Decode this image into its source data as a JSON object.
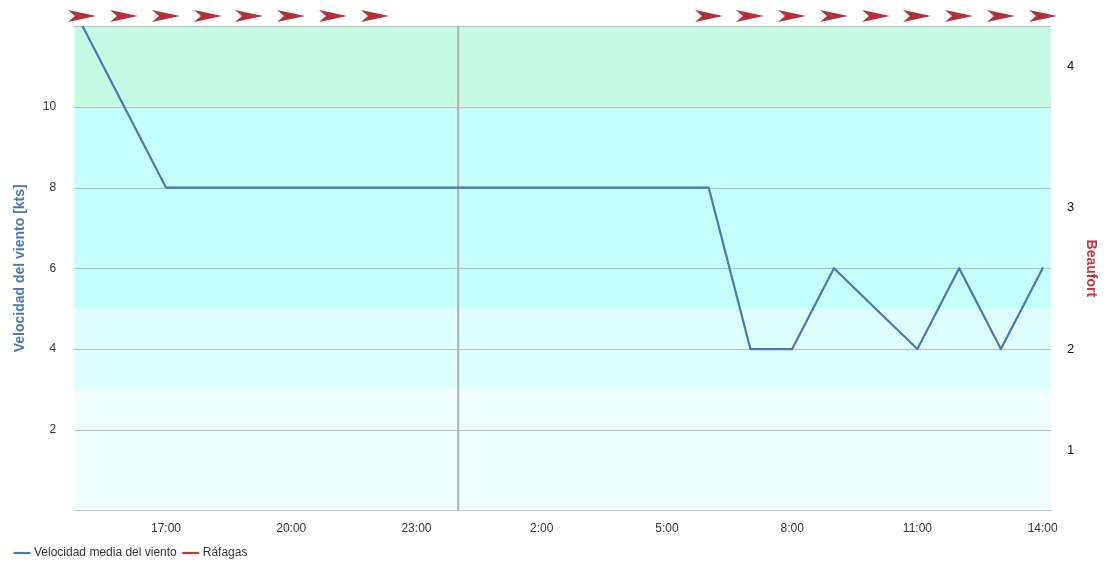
{
  "chart_data": {
    "type": "line",
    "ylabel": "Velocidad del viento [kts]",
    "y2label": "Beaufort",
    "x": [
      "--01-01T15:00",
      "--01-01T16:00",
      "--01-01T17:00",
      "--01-01T18:00",
      "--01-01T19:00",
      "--01-01T20:00",
      "--01-01T21:00",
      "--01-01T22:00",
      "--01-02T06:00",
      "--01-02T07:00",
      "--01-02T08:00",
      "--01-02T09:00",
      "--01-02T10:00",
      "--01-02T11:00",
      "--01-02T12:00",
      "--01-02T13:00",
      "--01-02T14:00"
    ],
    "series": [
      {
        "name": "Velocidad media del viento",
        "color": "#4a77b4",
        "values": [
          12,
          10,
          8,
          8,
          8,
          8,
          8,
          8,
          8,
          4,
          4,
          6,
          5,
          4,
          6,
          4,
          6
        ]
      },
      {
        "name": "Ráfagas",
        "color": "#c1363d",
        "values": [
          null,
          null,
          null,
          null,
          null,
          null,
          null,
          null,
          null,
          null,
          null,
          null,
          null,
          null,
          null,
          null,
          null
        ]
      }
    ],
    "xlim": [
      "--01-01T14:48",
      "--01-02T14:12"
    ],
    "xticks": [
      {
        "value": "--01-01T17:00",
        "label": "17:00"
      },
      {
        "value": "--01-01T20:00",
        "label": "20:00"
      },
      {
        "value": "--01-01T23:00",
        "label": "23:00"
      },
      {
        "value": "--01-02T02:00",
        "label": "2:00"
      },
      {
        "value": "--01-02T05:00",
        "label": "5:00"
      },
      {
        "value": "--01-02T08:00",
        "label": "8:00"
      },
      {
        "value": "--01-02T11:00",
        "label": "11:00"
      },
      {
        "value": "--01-02T14:00",
        "label": "14:00"
      }
    ],
    "ylim": [
      0,
      12
    ],
    "yticks": [
      2,
      4,
      6,
      8,
      10
    ],
    "bands": [
      {
        "axis": "y",
        "from": 0,
        "to": 3,
        "color": "#effffe",
        "label": "1"
      },
      {
        "axis": "y",
        "from": 3,
        "to": 5,
        "color": "#dffffd",
        "label": "2"
      },
      {
        "axis": "y",
        "from": 5,
        "to": 10,
        "color": "#c5fffb",
        "label": "3"
      },
      {
        "axis": "y",
        "from": 10,
        "to": 12,
        "color": "#c5fbe5",
        "label": "4"
      }
    ],
    "ref_lines": [
      {
        "axis": "x",
        "value": "--01-02T00:00",
        "color": "#b0b0b0"
      }
    ],
    "grid": "y",
    "legend": "bottom left",
    "marker": "none",
    "line_style": "solid"
  }
}
